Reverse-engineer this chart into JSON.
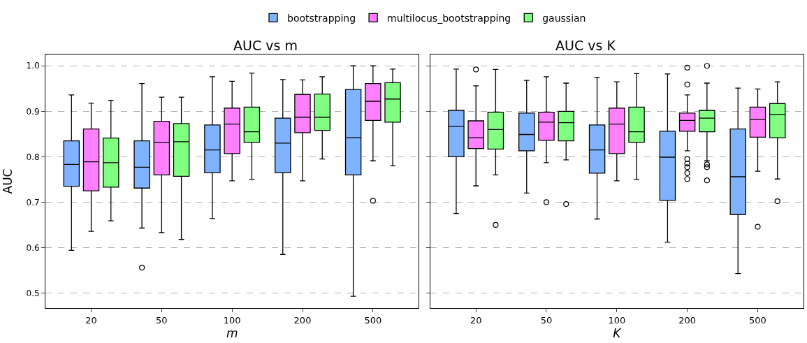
{
  "chart_data": [
    {
      "type": "box",
      "title": "AUC vs m",
      "xlabel": "m",
      "ylabel": "AUC",
      "categories": [
        "20",
        "50",
        "100",
        "200",
        "500"
      ],
      "ylim": [
        0.467,
        1.025
      ],
      "yticks": [
        {
          "value": 0.5,
          "label": "0.5"
        },
        {
          "value": 0.6,
          "label": "0.6"
        },
        {
          "value": 0.7,
          "label": "0.7"
        },
        {
          "value": 0.8,
          "label": "0.8"
        },
        {
          "value": 0.9,
          "label": "0.9"
        },
        {
          "value": 1.0,
          "label": "1.0"
        }
      ],
      "grid": "y",
      "legend": "top",
      "series": [
        {
          "name": "bootstrapping",
          "color": "#80b3ff",
          "boxes": [
            {
              "low": 0.594,
              "q1": 0.735,
              "median": 0.783,
              "q3": 0.835,
              "high": 0.936
            },
            {
              "low": 0.643,
              "q1": 0.731,
              "median": 0.777,
              "q3": 0.835,
              "high": 0.961,
              "outliers": [
                0.556
              ]
            },
            {
              "low": 0.664,
              "q1": 0.765,
              "median": 0.815,
              "q3": 0.87,
              "high": 0.976
            },
            {
              "low": 0.585,
              "q1": 0.765,
              "median": 0.83,
              "q3": 0.885,
              "high": 0.97
            },
            {
              "low": 0.493,
              "q1": 0.76,
              "median": 0.842,
              "q3": 0.948,
              "high": 1.0
            }
          ]
        },
        {
          "name": "multilocus_bootstrapping",
          "color": "#ff80ff",
          "boxes": [
            {
              "low": 0.636,
              "q1": 0.725,
              "median": 0.789,
              "q3": 0.861,
              "high": 0.918
            },
            {
              "low": 0.633,
              "q1": 0.76,
              "median": 0.832,
              "q3": 0.878,
              "high": 0.931
            },
            {
              "low": 0.747,
              "q1": 0.807,
              "median": 0.872,
              "q3": 0.907,
              "high": 0.966
            },
            {
              "low": 0.747,
              "q1": 0.853,
              "median": 0.887,
              "q3": 0.937,
              "high": 0.969
            },
            {
              "low": 0.791,
              "q1": 0.88,
              "median": 0.922,
              "q3": 0.961,
              "high": 1.0,
              "outliers": [
                0.703
              ]
            }
          ]
        },
        {
          "name": "gaussian",
          "color": "#80ff80",
          "boxes": [
            {
              "low": 0.659,
              "q1": 0.733,
              "median": 0.787,
              "q3": 0.841,
              "high": 0.924
            },
            {
              "low": 0.618,
              "q1": 0.757,
              "median": 0.833,
              "q3": 0.873,
              "high": 0.931
            },
            {
              "low": 0.75,
              "q1": 0.832,
              "median": 0.855,
              "q3": 0.909,
              "high": 0.984
            },
            {
              "low": 0.795,
              "q1": 0.858,
              "median": 0.887,
              "q3": 0.938,
              "high": 0.976
            },
            {
              "low": 0.78,
              "q1": 0.876,
              "median": 0.927,
              "q3": 0.963,
              "high": 0.993
            }
          ]
        }
      ]
    },
    {
      "type": "box",
      "title": "AUC vs K",
      "xlabel": "K",
      "categories": [
        "20",
        "50",
        "100",
        "200",
        "500"
      ],
      "ylim": [
        0.467,
        1.025
      ],
      "yticks": [
        {
          "value": 0.5,
          "label": null
        },
        {
          "value": 0.6,
          "label": null
        },
        {
          "value": 0.7,
          "label": null
        },
        {
          "value": 0.8,
          "label": null
        },
        {
          "value": 0.9,
          "label": null
        },
        {
          "value": 1.0,
          "label": null
        }
      ],
      "tick_labels": "x",
      "grid": "y",
      "series": [
        {
          "color": "#80b3ff",
          "boxes": [
            {
              "low": 0.675,
              "q1": 0.8,
              "median": 0.867,
              "q3": 0.902,
              "high": 0.993
            },
            {
              "low": 0.72,
              "q1": 0.813,
              "median": 0.849,
              "q3": 0.896,
              "high": 0.968
            },
            {
              "low": 0.663,
              "q1": 0.764,
              "median": 0.815,
              "q3": 0.87,
              "high": 0.975
            },
            {
              "low": 0.612,
              "q1": 0.704,
              "median": 0.799,
              "q3": 0.856,
              "high": 0.982
            },
            {
              "low": 0.543,
              "q1": 0.673,
              "median": 0.756,
              "q3": 0.861,
              "high": 0.951
            }
          ]
        },
        {
          "color": "#ff80ff",
          "boxes": [
            {
              "low": 0.736,
              "q1": 0.818,
              "median": 0.842,
              "q3": 0.879,
              "high": 0.956,
              "outliers": [
                0.992
              ]
            },
            {
              "low": 0.787,
              "q1": 0.836,
              "median": 0.876,
              "q3": 0.898,
              "high": 0.976,
              "outliers": [
                0.7
              ]
            },
            {
              "low": 0.747,
              "q1": 0.807,
              "median": 0.872,
              "q3": 0.907,
              "high": 0.965
            },
            {
              "low": 0.813,
              "q1": 0.856,
              "median": 0.88,
              "q3": 0.896,
              "high": 0.936,
              "outliers": [
                0.996,
                0.959,
                0.795,
                0.785,
                0.777,
                0.764,
                0.751
              ]
            },
            {
              "low": 0.768,
              "q1": 0.843,
              "median": 0.882,
              "q3": 0.909,
              "high": 0.949,
              "outliers": [
                0.646
              ]
            }
          ]
        },
        {
          "color": "#80ff80",
          "boxes": [
            {
              "low": 0.76,
              "q1": 0.817,
              "median": 0.86,
              "q3": 0.898,
              "high": 0.992,
              "outliers": [
                0.65
              ]
            },
            {
              "low": 0.793,
              "q1": 0.835,
              "median": 0.875,
              "q3": 0.9,
              "high": 0.962,
              "outliers": [
                0.696
              ]
            },
            {
              "low": 0.75,
              "q1": 0.832,
              "median": 0.855,
              "q3": 0.909,
              "high": 0.983
            },
            {
              "low": 0.791,
              "q1": 0.855,
              "median": 0.885,
              "q3": 0.902,
              "high": 0.962,
              "outliers": [
                1.0,
                0.783,
                0.777,
                0.748
              ]
            },
            {
              "low": 0.751,
              "q1": 0.842,
              "median": 0.893,
              "q3": 0.917,
              "high": 0.965,
              "outliers": [
                0.702
              ]
            }
          ]
        }
      ]
    }
  ]
}
